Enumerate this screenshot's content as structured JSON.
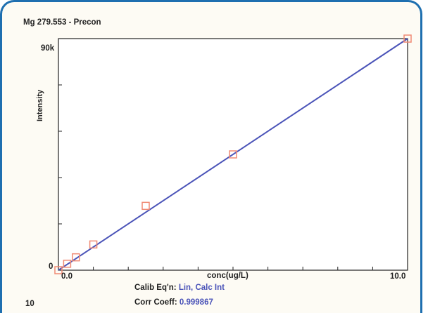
{
  "chart_data": {
    "type": "scatter",
    "title": "Mg 279.553 - Precon",
    "xlabel": "conc(ug/L)",
    "ylabel": "Intensity",
    "x_ticks": [
      "0.0",
      "10.0"
    ],
    "y_ticks": [
      "0",
      "90k"
    ],
    "xlim": [
      0,
      10
    ],
    "ylim": [
      0,
      90000
    ],
    "points": [
      {
        "x": 0.0,
        "y": 0
      },
      {
        "x": 0.25,
        "y": 2500
      },
      {
        "x": 0.5,
        "y": 5000
      },
      {
        "x": 1.0,
        "y": 10000
      },
      {
        "x": 2.5,
        "y": 25000
      },
      {
        "x": 5.0,
        "y": 45000
      },
      {
        "x": 10.0,
        "y": 90000
      }
    ],
    "fit_line": {
      "x": [
        0,
        10
      ],
      "y": [
        0,
        90000
      ]
    },
    "colors": {
      "points": "#f08a74",
      "line": "#4a53b8",
      "frame": "#1e6fb0"
    }
  },
  "footer": {
    "left_number": "10",
    "calib_label": "Calib Eq'n:",
    "calib_value": "Lin, Calc Int",
    "corr_label": "Corr Coeff:",
    "corr_value": "0.999867"
  }
}
